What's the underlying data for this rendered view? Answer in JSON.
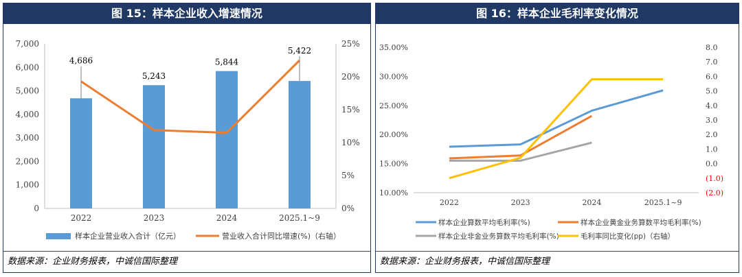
{
  "chart_data": [
    {
      "type": "bar",
      "title": "图 15：样本企业收入增速情况",
      "categories": [
        "2022",
        "2023",
        "2024",
        "2025.1~9"
      ],
      "series": [
        {
          "name": "样本企业营业收入合计（亿元）",
          "axis": "left",
          "kind": "bar",
          "color": "#5b9bd5",
          "values": [
            4686,
            5243,
            5844,
            5422
          ],
          "labels": [
            "4,686",
            "5,243",
            "5,844",
            "5,422"
          ]
        },
        {
          "name": "营业收入合计同比增速(%)（右轴）",
          "axis": "right",
          "kind": "line",
          "color": "#ed7d31",
          "values": [
            19.3,
            11.9,
            11.5,
            22.5
          ]
        }
      ],
      "left_axis": {
        "min": 0,
        "max": 7000,
        "ticks": [
          "0",
          "1,000",
          "2,000",
          "3,000",
          "4,000",
          "5,000",
          "6,000",
          "7,000"
        ]
      },
      "right_axis": {
        "min": 0,
        "max": 25,
        "ticks": [
          "0%",
          "5%",
          "10%",
          "15%",
          "20%",
          "25%"
        ]
      },
      "legend_position": "bottom",
      "source": "数据来源：企业财务报表，中诚信国际整理"
    },
    {
      "type": "line",
      "title": "图 16：样本企业毛利率变化情况",
      "categories": [
        "2022",
        "2023",
        "2024",
        "2025.1~9"
      ],
      "series": [
        {
          "name": "样本企业算数平均毛利率(%)",
          "axis": "left",
          "color": "#5b9bd5",
          "values": [
            17.9,
            18.3,
            24.1,
            27.6
          ]
        },
        {
          "name": "样本企业黄金业务算数平均毛利率(%)",
          "axis": "left",
          "color": "#ed7d31",
          "values": [
            15.9,
            16.4,
            23.2,
            null
          ]
        },
        {
          "name": "样本企业非金业务算数平均毛利率(%)",
          "axis": "left",
          "color": "#a5a5a5",
          "values": [
            15.5,
            15.5,
            18.6,
            null
          ]
        },
        {
          "name": "毛利率同比变化(pp)（右轴）",
          "axis": "right",
          "color": "#ffc000",
          "values": [
            -1.0,
            0.4,
            5.8,
            5.8
          ]
        }
      ],
      "left_axis": {
        "min": 10,
        "max": 35,
        "ticks": [
          "10.00%",
          "15.00%",
          "20.00%",
          "25.00%",
          "30.00%",
          "35.00%"
        ]
      },
      "right_axis": {
        "min": -2,
        "max": 8,
        "ticks": [
          "(2.0)",
          "(1.0)",
          "0.0",
          "1.0",
          "2.0",
          "3.0",
          "4.0",
          "5.0",
          "6.0",
          "7.0",
          "8.0"
        ],
        "negative_tick_color": "#ff0000"
      },
      "legend_position": "bottom",
      "source": "数据来源：企业财务报表，中诚信国际整理"
    }
  ]
}
